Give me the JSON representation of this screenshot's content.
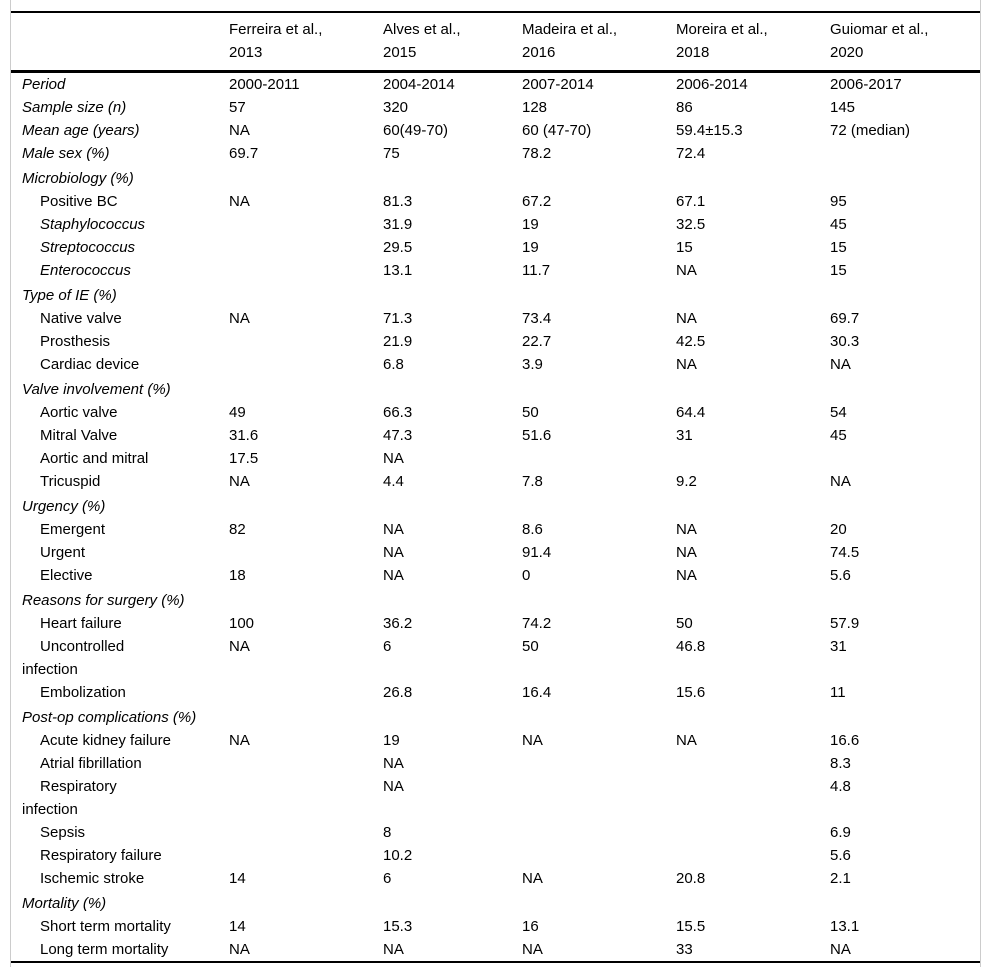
{
  "colors": {
    "text": "#000000",
    "rule": "#000000",
    "frame_border": "#cccccc",
    "background": "#ffffff"
  },
  "table": {
    "header": [
      "",
      "Ferreira et al.,\n2013",
      "Alves et al.,\n2015",
      "Madeira et al.,\n2016",
      "Moreira et al.,\n2018",
      "Guiomar et al.,\n2020"
    ],
    "rows": [
      {
        "label": "Period",
        "style": "field",
        "values": [
          "2000-2011",
          "2004-2014",
          "2007-2014",
          "2006-2014",
          "2006-2017"
        ]
      },
      {
        "label": "Sample size (n)",
        "style": "field",
        "values": [
          "57",
          "320",
          "128",
          "86",
          "145"
        ]
      },
      {
        "label": "Mean age (years)",
        "style": "field",
        "values": [
          "NA",
          "60(49-70)",
          "60 (47-70)",
          "59.4±15.3",
          "72 (median)"
        ]
      },
      {
        "label": "Male sex (%)",
        "style": "field",
        "values": [
          "69.7",
          "75",
          "78.2",
          "72.4",
          ""
        ]
      },
      {
        "label": "Microbiology (%)",
        "style": "group",
        "values": [
          "",
          "",
          "",
          "",
          ""
        ]
      },
      {
        "label": "Positive BC",
        "style": "item",
        "values": [
          "NA",
          "81.3",
          "67.2",
          "67.1",
          "95"
        ]
      },
      {
        "label": "Staphylococcus",
        "style": "item-italic",
        "values": [
          "",
          "31.9",
          "19",
          "32.5",
          "45"
        ]
      },
      {
        "label": "Streptococcus",
        "style": "item-italic",
        "values": [
          "",
          "29.5",
          "19",
          "15",
          "15"
        ]
      },
      {
        "label": "Enterococcus",
        "style": "item-italic",
        "values": [
          "",
          "13.1",
          "11.7",
          "NA",
          "15"
        ]
      },
      {
        "label": "Type of IE (%)",
        "style": "group",
        "values": [
          "",
          "",
          "",
          "",
          ""
        ]
      },
      {
        "label": "Native valve",
        "style": "item",
        "values": [
          "NA",
          "71.3",
          "73.4",
          "NA",
          "69.7"
        ]
      },
      {
        "label": "Prosthesis",
        "style": "item",
        "values": [
          "",
          "21.9",
          "22.7",
          "42.5",
          "30.3"
        ]
      },
      {
        "label": "Cardiac device",
        "style": "item",
        "values": [
          "",
          "6.8",
          "3.9",
          "NA",
          "NA"
        ]
      },
      {
        "label": "Valve involvement (%)",
        "style": "group",
        "values": [
          "",
          "",
          "",
          "",
          ""
        ]
      },
      {
        "label": "Aortic valve",
        "style": "item",
        "values": [
          "49",
          "66.3",
          "50",
          "64.4",
          "54"
        ]
      },
      {
        "label": "Mitral Valve",
        "style": "item",
        "values": [
          "31.6",
          "47.3",
          "51.6",
          "31",
          "45"
        ]
      },
      {
        "label": "Aortic and mitral",
        "style": "item",
        "values": [
          "17.5",
          "NA",
          "",
          "",
          ""
        ]
      },
      {
        "label": "Tricuspid",
        "style": "item",
        "values": [
          "NA",
          "4.4",
          "7.8",
          "9.2",
          "NA"
        ]
      },
      {
        "label": "Urgency (%)",
        "style": "group",
        "values": [
          "",
          "",
          "",
          "",
          ""
        ]
      },
      {
        "label": "Emergent",
        "style": "item",
        "values": [
          "82",
          "NA",
          "8.6",
          "NA",
          "20"
        ]
      },
      {
        "label": "Urgent",
        "style": "item",
        "values": [
          "",
          "NA",
          "91.4",
          "NA",
          "74.5"
        ]
      },
      {
        "label": "Elective",
        "style": "item",
        "values": [
          "18",
          "NA",
          "0",
          "NA",
          "5.6"
        ]
      },
      {
        "label": "Reasons for surgery (%)",
        "style": "group",
        "values": [
          "",
          "",
          "",
          "",
          ""
        ]
      },
      {
        "label": "Heart failure",
        "style": "item",
        "values": [
          "100",
          "36.2",
          "74.2",
          "50",
          "57.9"
        ]
      },
      {
        "label": "Uncontrolled\ninfection",
        "style": "item",
        "values": [
          "NA",
          "6",
          "50",
          "46.8",
          "31"
        ]
      },
      {
        "label": "Embolization",
        "style": "item",
        "values": [
          "",
          "26.8",
          "16.4",
          "15.6",
          "11"
        ]
      },
      {
        "label": "Post-op complications (%)",
        "style": "group",
        "values": [
          "",
          "",
          "",
          "",
          ""
        ]
      },
      {
        "label": "Acute kidney failure",
        "style": "item",
        "values": [
          "NA",
          "19",
          "NA",
          "NA",
          "16.6"
        ]
      },
      {
        "label": "Atrial fibrillation",
        "style": "item",
        "values": [
          "",
          "NA",
          "",
          "",
          "8.3"
        ]
      },
      {
        "label": "Respiratory\ninfection",
        "style": "item",
        "values": [
          "",
          "NA",
          "",
          "",
          "4.8"
        ]
      },
      {
        "label": "Sepsis",
        "style": "item",
        "values": [
          "",
          "8",
          "",
          "",
          "6.9"
        ]
      },
      {
        "label": "Respiratory failure",
        "style": "item",
        "values": [
          "",
          "10.2",
          "",
          "",
          "5.6"
        ]
      },
      {
        "label": "Ischemic stroke",
        "style": "item",
        "values": [
          "14",
          "6",
          "NA",
          "20.8",
          "2.1"
        ]
      },
      {
        "label": "Mortality (%)",
        "style": "group",
        "values": [
          "",
          "",
          "",
          "",
          ""
        ]
      },
      {
        "label": "Short term mortality",
        "style": "item",
        "values": [
          "14",
          "15.3",
          "16",
          "15.5",
          "13.1"
        ]
      },
      {
        "label": "Long term mortality",
        "style": "item",
        "values": [
          "NA",
          "NA",
          "NA",
          "33",
          "NA"
        ]
      }
    ]
  }
}
